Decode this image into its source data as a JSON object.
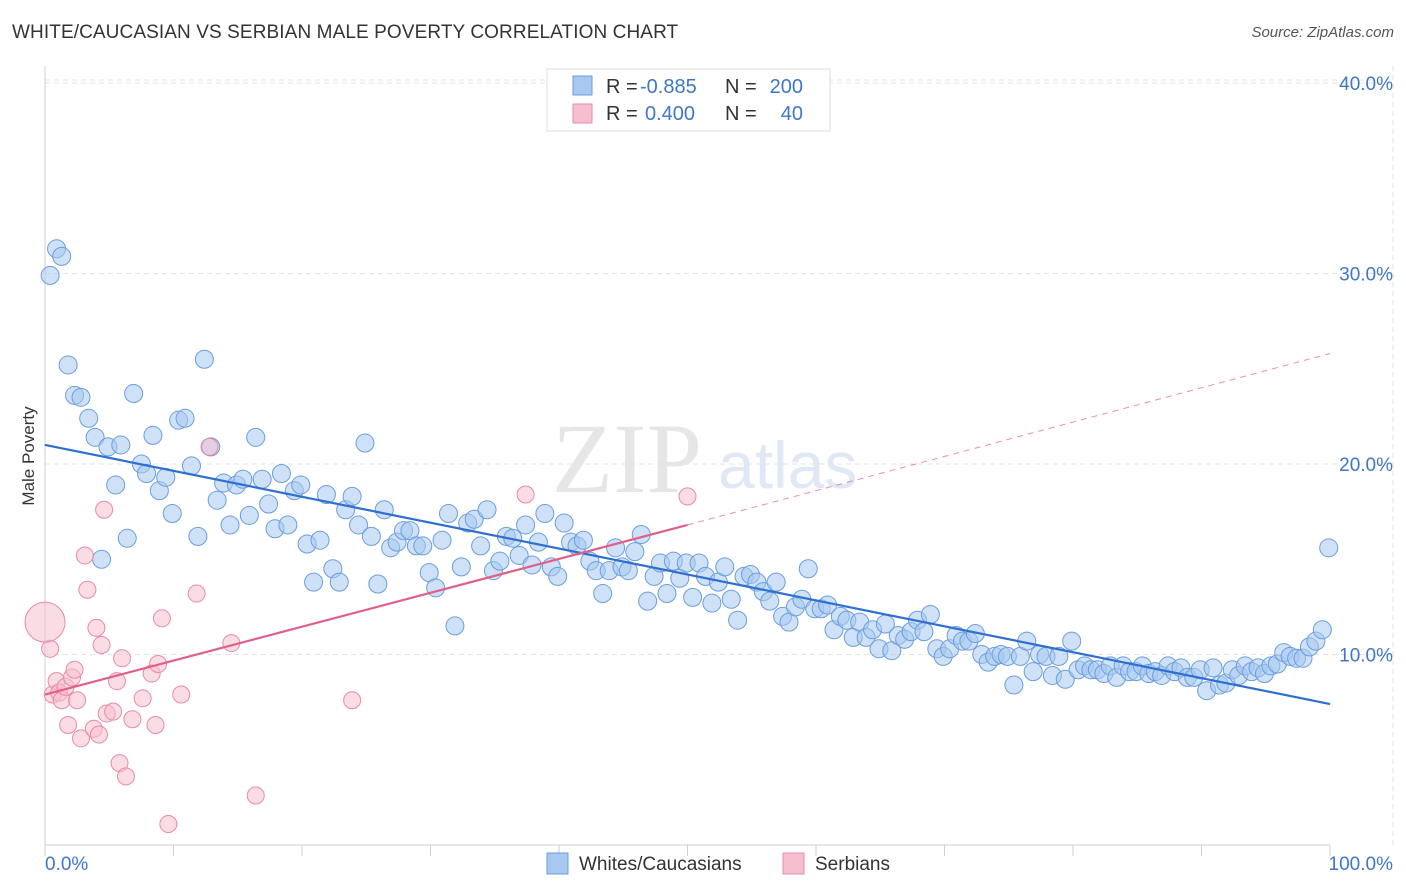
{
  "header": {
    "title": "WHITE/CAUCASIAN VS SERBIAN MALE POVERTY CORRELATION CHART",
    "source": "Source: ZipAtlas.com"
  },
  "watermark": {
    "zip": "ZIP",
    "atlas": "atlas"
  },
  "legend": {
    "rows": [
      {
        "r_label": "R = ",
        "r_value": "-0.885",
        "n_label": "N = ",
        "n_value": "200",
        "color": "#a8c8f0"
      },
      {
        "r_label": "R = ",
        "r_value": "0.400",
        "n_label": "N = ",
        "n_value": "40",
        "color": "#f4b6ca"
      }
    ]
  },
  "bottom_legend": {
    "items": [
      {
        "label": "Whites/Caucasians",
        "color": "#a8c8f0"
      },
      {
        "label": "Serbians",
        "color": "#f4b6ca"
      }
    ]
  },
  "colors": {
    "blue_fill": "#a8c8f0",
    "blue_stroke": "#6a9edc",
    "blue_line": "#2f6fd0",
    "pink_fill": "#f6bfd0",
    "pink_stroke": "#e88aa8",
    "pink_line": "#e0608c",
    "tick_text": "#3f77c6"
  },
  "chart_data": {
    "type": "scatter",
    "title": "WHITE/CAUCASIAN VS SERBIAN MALE POVERTY CORRELATION CHART",
    "xlabel": "",
    "ylabel": "Male Poverty",
    "xlim": [
      0,
      100
    ],
    "ylim": [
      0,
      40
    ],
    "x_tick_labels": [
      "0.0%",
      "100.0%"
    ],
    "y_ticks": [
      10,
      20,
      30,
      40
    ],
    "y_tick_labels": [
      "10.0%",
      "20.0%",
      "30.0%",
      "40.0%"
    ],
    "grid": true,
    "series": [
      {
        "name": "Whites/Caucasians",
        "trend": {
          "x0": 0,
          "y0": 21.0,
          "x1": 100,
          "y1": 7.4
        },
        "points": [
          [
            0.4,
            29.9
          ],
          [
            0.9,
            31.3
          ],
          [
            1.3,
            30.9
          ],
          [
            1.8,
            25.2
          ],
          [
            2.3,
            23.6
          ],
          [
            2.8,
            23.5
          ],
          [
            3.4,
            22.4
          ],
          [
            3.9,
            21.4
          ],
          [
            4.4,
            15.0
          ],
          [
            4.9,
            20.9
          ],
          [
            5.5,
            18.9
          ],
          [
            5.9,
            21.0
          ],
          [
            6.4,
            16.1
          ],
          [
            6.9,
            23.7
          ],
          [
            7.5,
            20.0
          ],
          [
            7.9,
            19.5
          ],
          [
            8.4,
            21.5
          ],
          [
            8.9,
            18.6
          ],
          [
            9.4,
            19.3
          ],
          [
            9.9,
            17.4
          ],
          [
            10.4,
            22.3
          ],
          [
            10.9,
            22.4
          ],
          [
            11.4,
            19.9
          ],
          [
            11.9,
            16.2
          ],
          [
            12.4,
            25.5
          ],
          [
            12.9,
            20.9
          ],
          [
            13.4,
            18.1
          ],
          [
            13.9,
            19.0
          ],
          [
            14.4,
            16.8
          ],
          [
            14.9,
            18.9
          ],
          [
            15.4,
            19.2
          ],
          [
            15.9,
            17.3
          ],
          [
            16.4,
            21.4
          ],
          [
            16.9,
            19.2
          ],
          [
            17.4,
            17.9
          ],
          [
            17.9,
            16.6
          ],
          [
            18.4,
            19.5
          ],
          [
            18.9,
            16.8
          ],
          [
            19.4,
            18.6
          ],
          [
            19.9,
            18.9
          ],
          [
            20.4,
            15.8
          ],
          [
            20.9,
            13.8
          ],
          [
            21.4,
            16.0
          ],
          [
            21.9,
            18.4
          ],
          [
            22.4,
            14.5
          ],
          [
            22.9,
            13.8
          ],
          [
            23.4,
            17.6
          ],
          [
            23.9,
            18.3
          ],
          [
            24.4,
            16.8
          ],
          [
            24.9,
            21.1
          ],
          [
            25.4,
            16.2
          ],
          [
            25.9,
            13.7
          ],
          [
            26.4,
            17.6
          ],
          [
            26.9,
            15.6
          ],
          [
            27.4,
            15.9
          ],
          [
            27.9,
            16.5
          ],
          [
            28.4,
            16.5
          ],
          [
            28.9,
            15.7
          ],
          [
            29.4,
            15.7
          ],
          [
            29.9,
            14.3
          ],
          [
            30.4,
            13.5
          ],
          [
            30.9,
            16.0
          ],
          [
            31.4,
            17.4
          ],
          [
            31.9,
            11.5
          ],
          [
            32.4,
            14.6
          ],
          [
            32.9,
            16.9
          ],
          [
            33.4,
            17.1
          ],
          [
            33.9,
            15.7
          ],
          [
            34.4,
            17.6
          ],
          [
            34.9,
            14.4
          ],
          [
            35.4,
            14.9
          ],
          [
            35.9,
            16.2
          ],
          [
            36.4,
            16.1
          ],
          [
            36.9,
            15.2
          ],
          [
            37.4,
            16.8
          ],
          [
            37.9,
            14.7
          ],
          [
            38.4,
            15.9
          ],
          [
            38.9,
            17.4
          ],
          [
            39.4,
            14.6
          ],
          [
            39.9,
            14.1
          ],
          [
            40.4,
            16.9
          ],
          [
            40.9,
            15.9
          ],
          [
            41.4,
            15.7
          ],
          [
            41.9,
            16.0
          ],
          [
            42.4,
            14.9
          ],
          [
            42.9,
            14.4
          ],
          [
            43.4,
            13.2
          ],
          [
            43.9,
            14.4
          ],
          [
            44.4,
            15.6
          ],
          [
            44.9,
            14.6
          ],
          [
            45.4,
            14.4
          ],
          [
            45.9,
            15.4
          ],
          [
            46.4,
            16.3
          ],
          [
            46.9,
            12.8
          ],
          [
            47.4,
            14.1
          ],
          [
            47.9,
            14.8
          ],
          [
            48.4,
            13.2
          ],
          [
            48.9,
            14.9
          ],
          [
            49.4,
            14.0
          ],
          [
            49.9,
            14.8
          ],
          [
            50.4,
            13.0
          ],
          [
            50.9,
            14.8
          ],
          [
            51.4,
            14.1
          ],
          [
            51.9,
            12.7
          ],
          [
            52.4,
            13.8
          ],
          [
            52.9,
            14.6
          ],
          [
            53.4,
            12.9
          ],
          [
            53.9,
            11.8
          ],
          [
            54.4,
            14.1
          ],
          [
            54.9,
            14.2
          ],
          [
            55.4,
            13.8
          ],
          [
            55.9,
            13.3
          ],
          [
            56.4,
            12.8
          ],
          [
            56.9,
            13.8
          ],
          [
            57.4,
            12.0
          ],
          [
            57.9,
            11.7
          ],
          [
            58.4,
            12.5
          ],
          [
            58.9,
            12.9
          ],
          [
            59.4,
            14.5
          ],
          [
            59.9,
            12.4
          ],
          [
            60.4,
            12.4
          ],
          [
            60.9,
            12.6
          ],
          [
            61.4,
            11.3
          ],
          [
            61.9,
            12.0
          ],
          [
            62.4,
            11.8
          ],
          [
            62.9,
            10.9
          ],
          [
            63.4,
            11.7
          ],
          [
            63.9,
            10.9
          ],
          [
            64.4,
            11.3
          ],
          [
            64.9,
            10.3
          ],
          [
            65.4,
            11.6
          ],
          [
            65.9,
            10.2
          ],
          [
            66.4,
            11.0
          ],
          [
            66.9,
            10.8
          ],
          [
            67.4,
            11.2
          ],
          [
            67.9,
            11.8
          ],
          [
            68.4,
            11.2
          ],
          [
            68.9,
            12.1
          ],
          [
            69.4,
            10.3
          ],
          [
            69.9,
            9.9
          ],
          [
            70.4,
            10.3
          ],
          [
            70.9,
            11.0
          ],
          [
            71.4,
            10.7
          ],
          [
            71.9,
            10.7
          ],
          [
            72.4,
            11.1
          ],
          [
            72.9,
            10.0
          ],
          [
            73.4,
            9.6
          ],
          [
            73.9,
            9.9
          ],
          [
            74.4,
            10.0
          ],
          [
            74.9,
            9.9
          ],
          [
            75.4,
            8.4
          ],
          [
            75.9,
            9.9
          ],
          [
            76.4,
            10.7
          ],
          [
            76.9,
            9.1
          ],
          [
            77.4,
            10.0
          ],
          [
            77.9,
            9.9
          ],
          [
            78.4,
            8.9
          ],
          [
            78.9,
            9.9
          ],
          [
            79.4,
            8.7
          ],
          [
            79.9,
            10.7
          ],
          [
            80.4,
            9.2
          ],
          [
            80.9,
            9.4
          ],
          [
            81.4,
            9.2
          ],
          [
            81.9,
            9.2
          ],
          [
            82.4,
            9.0
          ],
          [
            82.9,
            9.4
          ],
          [
            83.4,
            8.8
          ],
          [
            83.9,
            9.4
          ],
          [
            84.4,
            9.1
          ],
          [
            84.9,
            9.1
          ],
          [
            85.4,
            9.4
          ],
          [
            85.9,
            9.0
          ],
          [
            86.4,
            9.1
          ],
          [
            86.9,
            8.9
          ],
          [
            87.4,
            9.4
          ],
          [
            87.9,
            9.1
          ],
          [
            88.4,
            9.3
          ],
          [
            88.9,
            8.8
          ],
          [
            89.4,
            8.8
          ],
          [
            89.9,
            9.2
          ],
          [
            90.4,
            8.1
          ],
          [
            90.9,
            9.3
          ],
          [
            91.4,
            8.4
          ],
          [
            91.9,
            8.5
          ],
          [
            92.4,
            9.2
          ],
          [
            92.9,
            8.9
          ],
          [
            93.4,
            9.4
          ],
          [
            93.9,
            9.1
          ],
          [
            94.4,
            9.3
          ],
          [
            94.9,
            9.0
          ],
          [
            95.4,
            9.4
          ],
          [
            95.9,
            9.5
          ],
          [
            96.4,
            10.1
          ],
          [
            96.9,
            9.9
          ],
          [
            97.4,
            9.8
          ],
          [
            97.9,
            9.8
          ],
          [
            98.4,
            10.4
          ],
          [
            98.9,
            10.7
          ],
          [
            99.4,
            11.3
          ],
          [
            99.9,
            15.6
          ]
        ]
      },
      {
        "name": "Serbians",
        "trend": {
          "x0": 0,
          "y0": 7.9,
          "x1": 50,
          "y1": 16.8,
          "dashed_to_x": 100,
          "dashed_to_y": 25.8
        },
        "points": [
          [
            0.4,
            10.3
          ],
          [
            0.6,
            7.9
          ],
          [
            0.9,
            8.6
          ],
          [
            1.1,
            8.0
          ],
          [
            1.3,
            7.6
          ],
          [
            1.6,
            8.3
          ],
          [
            1.8,
            6.3
          ],
          [
            2.1,
            8.8
          ],
          [
            2.3,
            9.2
          ],
          [
            2.5,
            7.6
          ],
          [
            2.8,
            5.6
          ],
          [
            3.1,
            15.2
          ],
          [
            3.3,
            13.4
          ],
          [
            3.8,
            6.1
          ],
          [
            4.0,
            11.4
          ],
          [
            4.2,
            5.8
          ],
          [
            4.4,
            10.5
          ],
          [
            4.6,
            17.6
          ],
          [
            4.8,
            6.9
          ],
          [
            5.3,
            7.0
          ],
          [
            5.6,
            8.6
          ],
          [
            5.8,
            4.3
          ],
          [
            6.0,
            9.8
          ],
          [
            6.3,
            3.6
          ],
          [
            6.8,
            6.6
          ],
          [
            7.6,
            7.7
          ],
          [
            8.3,
            9.0
          ],
          [
            8.6,
            6.3
          ],
          [
            8.8,
            9.5
          ],
          [
            9.1,
            11.9
          ],
          [
            9.6,
            1.1
          ],
          [
            10.6,
            7.9
          ],
          [
            11.8,
            13.2
          ],
          [
            12.8,
            20.9
          ],
          [
            14.5,
            10.6
          ],
          [
            16.4,
            2.6
          ],
          [
            23.9,
            7.6
          ],
          [
            37.4,
            18.4
          ],
          [
            50.0,
            18.3
          ],
          [
            0.0,
            11.7
          ]
        ]
      }
    ]
  }
}
